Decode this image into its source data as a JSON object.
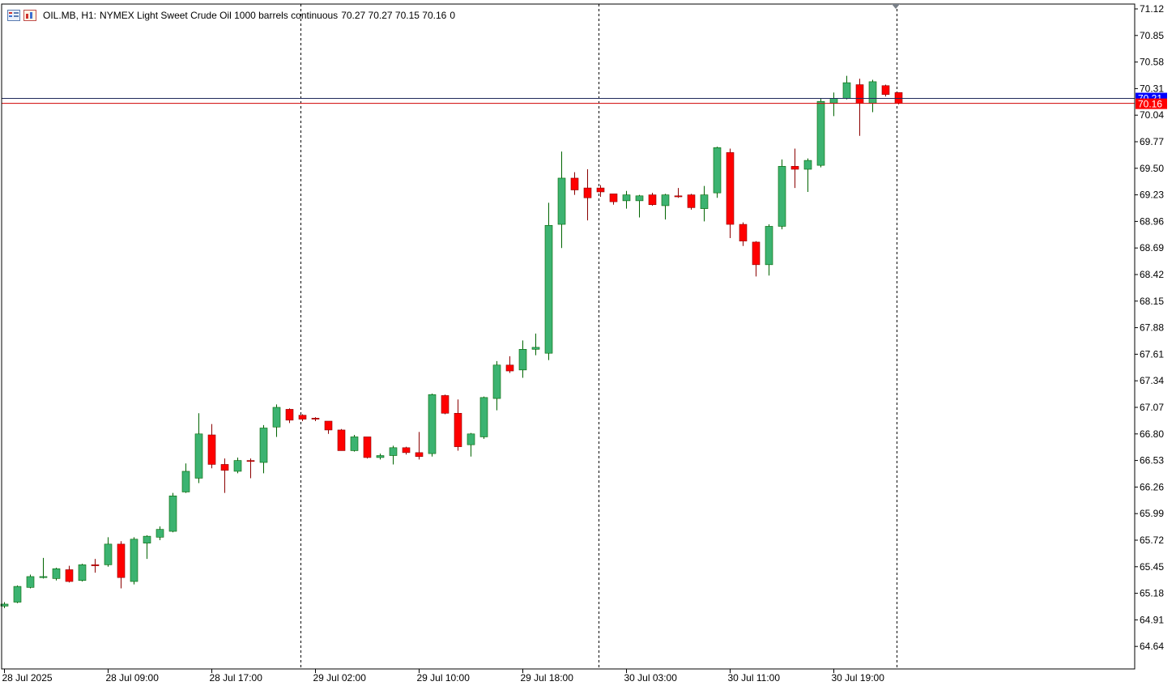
{
  "header": {
    "symbol": "OIL.MB, H1:",
    "description": "NYMEX Light Sweet Crude Oil 1000 barrels continuous",
    "ohlc": "70.27 70.27 70.15 70.16",
    "volume": "0"
  },
  "icons": [
    "chart-list-icon",
    "chart-window-icon"
  ],
  "colors": {
    "bull": "#3CB371",
    "bear": "#FF0000",
    "wick_bull": "#006400",
    "wick_bear": "#8B0000",
    "bid_line": "#1F2A5A",
    "ask_line": "#D00000",
    "bid_tag": "#0000FF",
    "ask_tag": "#FF0000"
  },
  "chart_data": {
    "type": "candlestick",
    "symbol": "OIL.MB",
    "timeframe": "H1",
    "y_ticks": [
      "71.12",
      "70.85",
      "70.58",
      "70.31",
      "70.04",
      "69.77",
      "69.50",
      "69.23",
      "68.96",
      "68.69",
      "68.42",
      "68.15",
      "67.88",
      "67.61",
      "67.34",
      "67.07",
      "66.80",
      "66.53",
      "66.26",
      "65.99",
      "65.72",
      "65.45",
      "65.18",
      "64.91",
      "64.64"
    ],
    "x_labels": [
      {
        "bar": 0,
        "label": "28 Jul 2025"
      },
      {
        "bar": 8,
        "label": "28 Jul 09:00"
      },
      {
        "bar": 16,
        "label": "28 Jul 17:00"
      },
      {
        "bar": 24,
        "label": "29 Jul 02:00"
      },
      {
        "bar": 32,
        "label": "29 Jul 10:00"
      },
      {
        "bar": 40,
        "label": "29 Jul 18:00"
      },
      {
        "bar": 48,
        "label": "30 Jul 03:00"
      },
      {
        "bar": 56,
        "label": "30 Jul 11:00"
      },
      {
        "bar": 64,
        "label": "30 Jul 19:00"
      }
    ],
    "separators": [
      22.9,
      45.9,
      68.9
    ],
    "bid_price": "70.21",
    "ask_price": "70.16",
    "candles": [
      [
        65.05,
        65.09,
        65.03,
        65.07
      ],
      [
        65.09,
        65.26,
        65.08,
        65.25
      ],
      [
        65.24,
        65.37,
        65.23,
        65.35
      ],
      [
        65.34,
        65.54,
        65.33,
        65.35
      ],
      [
        65.33,
        65.44,
        65.31,
        65.43
      ],
      [
        65.42,
        65.46,
        65.29,
        65.3
      ],
      [
        65.31,
        65.48,
        65.3,
        65.47
      ],
      [
        65.47,
        65.53,
        65.39,
        65.46
      ],
      [
        65.47,
        65.75,
        65.45,
        65.68
      ],
      [
        65.68,
        65.71,
        65.23,
        65.34
      ],
      [
        65.3,
        65.75,
        65.27,
        65.73
      ],
      [
        65.69,
        65.77,
        65.53,
        65.76
      ],
      [
        65.75,
        65.86,
        65.72,
        65.83
      ],
      [
        65.81,
        66.2,
        65.8,
        66.17
      ],
      [
        66.21,
        66.5,
        66.2,
        66.42
      ],
      [
        66.35,
        67.01,
        66.3,
        66.8
      ],
      [
        66.79,
        66.9,
        66.45,
        66.49
      ],
      [
        66.49,
        66.55,
        66.2,
        66.43
      ],
      [
        66.42,
        66.56,
        66.4,
        66.53
      ],
      [
        66.53,
        66.55,
        66.35,
        66.52
      ],
      [
        66.51,
        66.89,
        66.4,
        66.86
      ],
      [
        66.87,
        67.1,
        66.77,
        67.07
      ],
      [
        67.05,
        67.06,
        66.91,
        66.94
      ],
      [
        66.99,
        67.0,
        66.93,
        66.95
      ],
      [
        66.96,
        66.97,
        66.93,
        66.95
      ],
      [
        66.93,
        66.93,
        66.8,
        66.84
      ],
      [
        66.84,
        66.85,
        66.63,
        66.63
      ],
      [
        66.63,
        66.79,
        66.62,
        66.77
      ],
      [
        66.77,
        66.77,
        66.55,
        66.56
      ],
      [
        66.56,
        66.6,
        66.54,
        66.58
      ],
      [
        66.58,
        66.68,
        66.49,
        66.66
      ],
      [
        66.66,
        66.67,
        66.59,
        66.61
      ],
      [
        66.61,
        66.82,
        66.54,
        66.57
      ],
      [
        66.6,
        67.21,
        66.57,
        67.2
      ],
      [
        67.19,
        67.2,
        67.0,
        67.01
      ],
      [
        67.01,
        67.15,
        66.63,
        66.67
      ],
      [
        66.69,
        66.81,
        66.57,
        66.8
      ],
      [
        66.77,
        67.18,
        66.75,
        67.17
      ],
      [
        67.16,
        67.54,
        67.04,
        67.5
      ],
      [
        67.5,
        67.59,
        67.42,
        67.44
      ],
      [
        67.45,
        67.75,
        67.37,
        67.66
      ],
      [
        67.66,
        67.82,
        67.6,
        67.68
      ],
      [
        67.62,
        69.15,
        67.55,
        68.92
      ],
      [
        68.93,
        69.67,
        68.69,
        69.4
      ],
      [
        69.4,
        69.46,
        69.23,
        69.28
      ],
      [
        69.3,
        69.49,
        68.97,
        69.2
      ],
      [
        69.3,
        69.33,
        69.21,
        69.26
      ],
      [
        69.24,
        69.24,
        69.13,
        69.16
      ],
      [
        69.17,
        69.27,
        69.09,
        69.23
      ],
      [
        69.17,
        69.23,
        69.0,
        69.22
      ],
      [
        69.23,
        69.25,
        69.12,
        69.13
      ],
      [
        69.12,
        69.24,
        68.98,
        69.23
      ],
      [
        69.22,
        69.3,
        69.2,
        69.21
      ],
      [
        69.23,
        69.24,
        69.08,
        69.1
      ],
      [
        69.09,
        69.32,
        68.96,
        69.23
      ],
      [
        69.25,
        69.72,
        69.2,
        69.71
      ],
      [
        69.66,
        69.7,
        68.79,
        68.93
      ],
      [
        68.93,
        68.95,
        68.71,
        68.76
      ],
      [
        68.75,
        68.76,
        68.4,
        68.52
      ],
      [
        68.52,
        68.93,
        68.41,
        68.91
      ],
      [
        68.91,
        69.59,
        68.88,
        69.52
      ],
      [
        69.52,
        69.7,
        69.3,
        69.49
      ],
      [
        69.49,
        69.6,
        69.26,
        69.58
      ],
      [
        69.53,
        70.21,
        69.51,
        70.18
      ],
      [
        70.16,
        70.27,
        70.03,
        70.21
      ],
      [
        70.21,
        70.44,
        70.2,
        70.37
      ],
      [
        70.35,
        70.41,
        69.83,
        70.16
      ],
      [
        70.16,
        70.4,
        70.07,
        70.38
      ],
      [
        70.34,
        70.35,
        70.23,
        70.25
      ],
      [
        70.27,
        70.27,
        70.15,
        70.16
      ]
    ]
  }
}
